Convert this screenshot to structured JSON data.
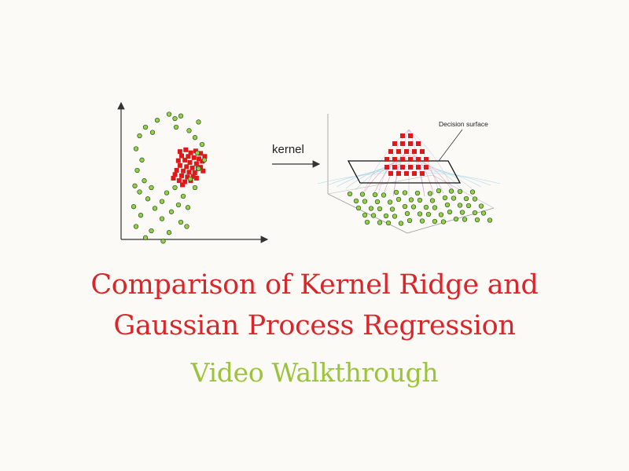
{
  "figure": {
    "arrow_label": "kernel",
    "surface_label": "Decision surface",
    "colors": {
      "inner_class": "#dd1a1a",
      "outer_class": "#8fd046",
      "point_outline": "#2f4f1f",
      "axis": "#333333"
    },
    "left_plot": {
      "red_squares": [
        [
          0.18,
          0.3
        ],
        [
          0.25,
          0.27
        ],
        [
          0.31,
          0.32
        ],
        [
          0.37,
          0.29
        ],
        [
          0.43,
          0.33
        ],
        [
          0.2,
          0.37
        ],
        [
          0.28,
          0.38
        ],
        [
          0.35,
          0.4
        ],
        [
          0.41,
          0.42
        ],
        [
          0.16,
          0.45
        ],
        [
          0.24,
          0.44
        ],
        [
          0.3,
          0.48
        ],
        [
          0.38,
          0.5
        ],
        [
          0.45,
          0.46
        ],
        [
          0.18,
          0.53
        ],
        [
          0.26,
          0.55
        ],
        [
          0.33,
          0.57
        ],
        [
          0.4,
          0.58
        ],
        [
          0.14,
          0.61
        ],
        [
          0.22,
          0.62
        ],
        [
          0.29,
          0.64
        ],
        [
          0.36,
          0.65
        ],
        [
          0.43,
          0.56
        ],
        [
          0.12,
          0.68
        ],
        [
          0.2,
          0.7
        ],
        [
          0.27,
          0.72
        ],
        [
          0.34,
          0.71
        ],
        [
          0.17,
          0.78
        ],
        [
          0.24,
          0.8
        ],
        [
          0.31,
          0.78
        ],
        [
          0.48,
          0.38
        ],
        [
          0.1,
          0.74
        ],
        [
          0.38,
          0.74
        ],
        [
          0.21,
          0.85
        ],
        [
          0.46,
          0.62
        ]
      ],
      "green_circles": [
        [
          0.3,
          0.05
        ],
        [
          0.4,
          0.07
        ],
        [
          0.2,
          0.12
        ],
        [
          0.55,
          0.14
        ],
        [
          0.1,
          0.2
        ],
        [
          0.36,
          0.2
        ],
        [
          0.05,
          0.3
        ],
        [
          0.52,
          0.32
        ],
        [
          0.58,
          0.4
        ],
        [
          0.02,
          0.45
        ],
        [
          0.54,
          0.5
        ],
        [
          0.07,
          0.58
        ],
        [
          0.6,
          0.58
        ],
        [
          0.03,
          0.7
        ],
        [
          0.55,
          0.68
        ],
        [
          0.09,
          0.82
        ],
        [
          0.48,
          0.8
        ],
        [
          0.15,
          0.9
        ],
        [
          0.35,
          0.9
        ],
        [
          0.52,
          0.9
        ],
        [
          0.05,
          0.95
        ],
        [
          0.28,
          0.96
        ],
        [
          0.42,
          1.0
        ],
        [
          0.12,
          1.03
        ],
        [
          0.24,
          1.06
        ],
        [
          0.38,
          1.1
        ],
        [
          0.0,
          1.12
        ],
        [
          0.18,
          1.14
        ],
        [
          0.32,
          1.18
        ],
        [
          0.46,
          1.13
        ],
        [
          0.06,
          1.22
        ],
        [
          0.24,
          1.26
        ],
        [
          0.4,
          1.3
        ],
        [
          0.02,
          1.35
        ],
        [
          0.15,
          1.4
        ],
        [
          0.3,
          1.42
        ],
        [
          0.1,
          1.48
        ],
        [
          0.25,
          1.52
        ],
        [
          0.35,
          0.1
        ],
        [
          0.16,
          0.26
        ],
        [
          0.47,
          0.24
        ],
        [
          0.01,
          0.88
        ],
        [
          0.45,
          1.35
        ]
      ]
    }
  },
  "text": {
    "title_line1": "Comparison of Kernel Ridge and",
    "title_line2": "Gaussian Process Regression",
    "subtitle": "Video Walkthrough",
    "title_color": "#d9262b",
    "subtitle_color": "#9ac43c"
  }
}
